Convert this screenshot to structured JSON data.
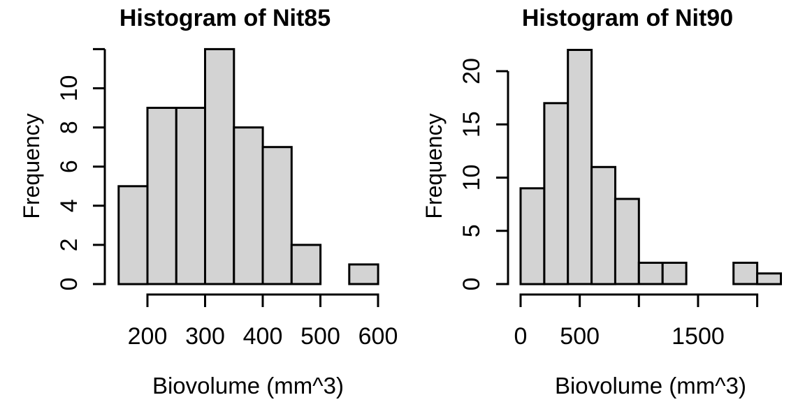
{
  "page": {
    "background": "#ffffff",
    "text_color": "#000000"
  },
  "chart_data": [
    {
      "type": "bar",
      "subtype": "histogram",
      "title": "Histogram of Nit85",
      "xlabel": "Biovolume (mm^3)",
      "ylabel": "Frequency",
      "bin_start": 150,
      "bin_width": 50,
      "bin_edges": [
        150,
        200,
        250,
        300,
        350,
        400,
        450,
        500,
        550,
        600
      ],
      "values": [
        5,
        9,
        9,
        12,
        8,
        7,
        2,
        0,
        1
      ],
      "x_ticks": [
        {
          "value": 200,
          "label": "200"
        },
        {
          "value": 300,
          "label": "300"
        },
        {
          "value": 400,
          "label": "400"
        },
        {
          "value": 500,
          "label": "500"
        },
        {
          "value": 600,
          "label": "600"
        }
      ],
      "y_ticks": [
        {
          "value": 0,
          "label": "0"
        },
        {
          "value": 2,
          "label": "2"
        },
        {
          "value": 4,
          "label": "4"
        },
        {
          "value": 6,
          "label": "6"
        },
        {
          "value": 8,
          "label": "8"
        },
        {
          "value": 10,
          "label": "10"
        },
        {
          "value": 12,
          "label": ""
        }
      ],
      "xlim": [
        150,
        600
      ],
      "ylim": [
        0,
        12
      ],
      "grid": false,
      "bar_fill": "#d3d3d3",
      "bar_stroke": "#000000",
      "axis_color": "#000000"
    },
    {
      "type": "bar",
      "subtype": "histogram",
      "title": "Histogram of Nit90",
      "xlabel": "Biovolume (mm^3)",
      "ylabel": "Frequency",
      "bin_start": 0,
      "bin_width": 200,
      "bin_edges": [
        0,
        200,
        400,
        600,
        800,
        1000,
        1200,
        1400,
        1600,
        1800,
        2000,
        2200
      ],
      "values": [
        9,
        17,
        22,
        11,
        8,
        2,
        2,
        0,
        0,
        2,
        1
      ],
      "x_ticks": [
        {
          "value": 0,
          "label": "0"
        },
        {
          "value": 500,
          "label": "500"
        },
        {
          "value": 1000,
          "label": ""
        },
        {
          "value": 1500,
          "label": "1500"
        },
        {
          "value": 2000,
          "label": ""
        }
      ],
      "y_ticks": [
        {
          "value": 0,
          "label": "0"
        },
        {
          "value": 5,
          "label": "5"
        },
        {
          "value": 10,
          "label": "10"
        },
        {
          "value": 15,
          "label": "15"
        },
        {
          "value": 20,
          "label": "20"
        }
      ],
      "xlim": [
        0,
        2200
      ],
      "ylim": [
        0,
        22
      ],
      "grid": false,
      "bar_fill": "#d3d3d3",
      "bar_stroke": "#000000",
      "axis_color": "#000000"
    }
  ]
}
